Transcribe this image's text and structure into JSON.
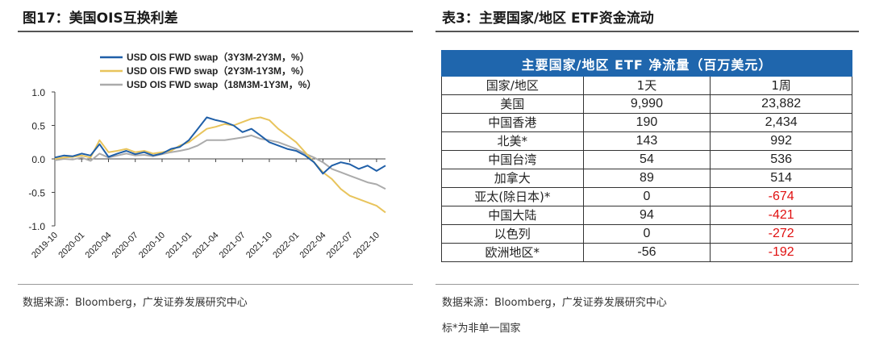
{
  "left": {
    "title": "图17：美国OIS互换利差",
    "source": "数据来源：Bloomberg，广发证券发展研究中心"
  },
  "right": {
    "title": "表3：主要国家/地区 ETF资金流动",
    "source": "数据来源：Bloomberg，广发证券发展研究中心",
    "note": "标*为非单一国家"
  },
  "chart_data": {
    "type": "line",
    "title": "美国OIS互换利差",
    "xlabel": "",
    "ylabel": "",
    "ylim": [
      -1.0,
      1.0
    ],
    "yticks": [
      "1.0",
      "0.5",
      "0.0",
      "-0.5",
      "-1.0"
    ],
    "xticks": [
      "2019-10",
      "2020-01",
      "2020-04",
      "2020-07",
      "2020-10",
      "2021-01",
      "2021-04",
      "2021-07",
      "2021-10",
      "2022-01",
      "2022-04",
      "2022-07",
      "2022-10"
    ],
    "x": [
      "2019-10",
      "2019-11",
      "2019-12",
      "2020-01",
      "2020-02",
      "2020-03",
      "2020-04",
      "2020-05",
      "2020-06",
      "2020-07",
      "2020-08",
      "2020-09",
      "2020-10",
      "2020-11",
      "2020-12",
      "2021-01",
      "2021-02",
      "2021-03",
      "2021-04",
      "2021-05",
      "2021-06",
      "2021-07",
      "2021-08",
      "2021-09",
      "2021-10",
      "2021-11",
      "2021-12",
      "2022-01",
      "2022-02",
      "2022-03",
      "2022-04",
      "2022-05",
      "2022-06",
      "2022-07",
      "2022-08",
      "2022-09",
      "2022-10",
      "2022-11"
    ],
    "series": [
      {
        "name": "USD OIS FWD swap（3Y3M-2Y3M，%）",
        "color": "#1f5fa8",
        "values": [
          0.02,
          0.05,
          0.04,
          0.08,
          0.05,
          0.22,
          0.03,
          0.08,
          0.12,
          0.07,
          0.1,
          0.05,
          0.08,
          0.15,
          0.18,
          0.28,
          0.45,
          0.62,
          0.58,
          0.55,
          0.5,
          0.4,
          0.45,
          0.35,
          0.25,
          0.2,
          0.15,
          0.12,
          0.05,
          -0.05,
          -0.22,
          -0.1,
          -0.05,
          -0.08,
          -0.15,
          -0.1,
          -0.18,
          -0.1
        ]
      },
      {
        "name": "USD OIS FWD swap（2Y3M-1Y3M，%）",
        "color": "#e8c45c",
        "values": [
          0.0,
          0.02,
          0.03,
          0.05,
          0.02,
          0.28,
          0.1,
          0.12,
          0.15,
          0.1,
          0.12,
          0.08,
          0.1,
          0.12,
          0.2,
          0.25,
          0.35,
          0.45,
          0.48,
          0.52,
          0.5,
          0.55,
          0.6,
          0.62,
          0.58,
          0.45,
          0.35,
          0.25,
          0.1,
          -0.05,
          -0.2,
          -0.3,
          -0.45,
          -0.55,
          -0.6,
          -0.65,
          -0.7,
          -0.8
        ]
      },
      {
        "name": "USD OIS FWD swap（18M3M-1Y3M，%）",
        "color": "#ababab",
        "values": [
          -0.02,
          0.0,
          -0.01,
          0.02,
          -0.03,
          0.08,
          0.02,
          0.05,
          0.08,
          0.05,
          0.06,
          0.04,
          0.07,
          0.1,
          0.12,
          0.15,
          0.2,
          0.28,
          0.28,
          0.28,
          0.3,
          0.32,
          0.35,
          0.3,
          0.28,
          0.25,
          0.2,
          0.15,
          0.08,
          0.02,
          -0.05,
          -0.15,
          -0.2,
          -0.25,
          -0.3,
          -0.35,
          -0.38,
          -0.45
        ]
      }
    ]
  },
  "table": {
    "header": "主要国家/地区 ETF 净流量（百万美元）",
    "columns": [
      "国家/地区",
      "1天",
      "1周"
    ],
    "rows": [
      {
        "region": "美国",
        "day": "9,990",
        "week": "23,882",
        "week_negative": false
      },
      {
        "region": "中国香港",
        "day": "190",
        "week": "2,434",
        "week_negative": false
      },
      {
        "region": "北美*",
        "day": "143",
        "week": "992",
        "week_negative": false
      },
      {
        "region": "中国台湾",
        "day": "54",
        "week": "536",
        "week_negative": false
      },
      {
        "region": "加拿大",
        "day": "89",
        "week": "514",
        "week_negative": false
      },
      {
        "region": "亚太(除日本)*",
        "day": "0",
        "week": "-674",
        "week_negative": true
      },
      {
        "region": "中国大陆",
        "day": "94",
        "week": "-421",
        "week_negative": true
      },
      {
        "region": "以色列",
        "day": "0",
        "week": "-272",
        "week_negative": true
      },
      {
        "region": "欧洲地区*",
        "day": "-56",
        "week": "-192",
        "week_negative": true
      }
    ]
  }
}
